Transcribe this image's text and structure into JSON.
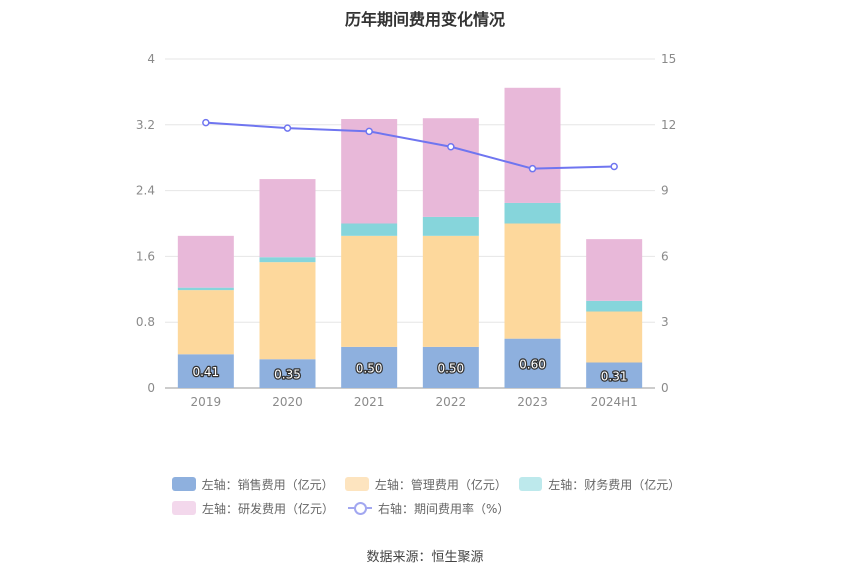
{
  "chart_data": {
    "type": "bar",
    "title": "历年期间费用变化情况",
    "categories": [
      "2019",
      "2020",
      "2021",
      "2022",
      "2023",
      "2024H1"
    ],
    "series": [
      {
        "name": "左轴：销售费用（亿元）",
        "axis": "left",
        "kind": "bar",
        "color": "#8eb0de",
        "values": [
          0.41,
          0.35,
          0.5,
          0.5,
          0.6,
          0.31
        ],
        "labels": [
          "0.41",
          "0.35",
          "0.50",
          "0.50",
          "0.60",
          "0.31"
        ]
      },
      {
        "name": "左轴：管理费用（亿元）",
        "axis": "left",
        "kind": "bar",
        "color": "#fdd89c",
        "values": [
          0.78,
          1.18,
          1.35,
          1.35,
          1.4,
          0.62
        ]
      },
      {
        "name": "左轴：财务费用（亿元）",
        "axis": "left",
        "kind": "bar",
        "color": "#86d5db",
        "values": [
          0.03,
          0.06,
          0.15,
          0.23,
          0.25,
          0.13
        ]
      },
      {
        "name": "左轴：研发费用（亿元）",
        "axis": "left",
        "kind": "bar",
        "color": "#e8b8d9",
        "values": [
          0.63,
          0.95,
          1.27,
          1.2,
          1.4,
          0.75
        ]
      },
      {
        "name": "右轴：期间费用率（%）",
        "axis": "right",
        "kind": "line",
        "color": "#6f75f0",
        "values": [
          12.1,
          11.85,
          11.7,
          11.0,
          10.0,
          10.1
        ]
      }
    ],
    "left_axis": {
      "ylim": [
        0,
        4
      ],
      "ticks": [
        "0",
        "0.8",
        "1.6",
        "2.4",
        "3.2",
        "4"
      ]
    },
    "right_axis": {
      "ylim": [
        0,
        15
      ],
      "ticks": [
        "0",
        "3",
        "6",
        "9",
        "12",
        "15"
      ]
    },
    "legend_position": "bottom",
    "grid": true
  },
  "legend": [
    {
      "label": "左轴：销售费用（亿元）",
      "color": "#8eb0de"
    },
    {
      "label": "左轴：管理费用（亿元）",
      "color": "#fde4bf"
    },
    {
      "label": "左轴：财务费用（亿元）",
      "color": "#bde9ec"
    },
    {
      "label": "左轴：研发费用（亿元）",
      "color": "#f3d8ec"
    },
    {
      "label": "右轴：期间费用率（%）",
      "color": "#a2a7f0"
    }
  ],
  "source": "数据来源：恒生聚源"
}
